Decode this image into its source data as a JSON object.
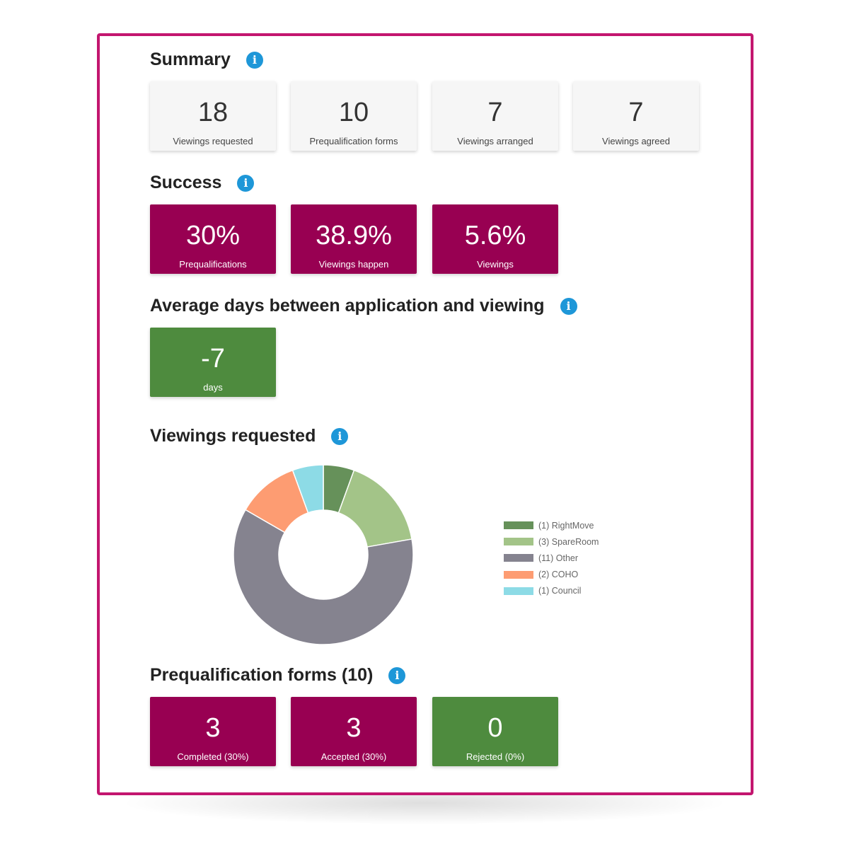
{
  "colors": {
    "frame_border": "#c3166f",
    "brand_dark": "#980052",
    "success_green": "#4e8b3e",
    "info_blue": "#1e97d8"
  },
  "summary": {
    "title": "Summary",
    "icon": "info-icon",
    "cards": [
      {
        "value": "18",
        "label": "Viewings requested"
      },
      {
        "value": "10",
        "label": "Prequalification forms"
      },
      {
        "value": "7",
        "label": "Viewings arranged"
      },
      {
        "value": "7",
        "label": "Viewings agreed"
      }
    ]
  },
  "success": {
    "title": "Success",
    "icon": "info-icon",
    "cards": [
      {
        "value": "30%",
        "label": "Prequalifications",
        "color": "#980052"
      },
      {
        "value": "38.9%",
        "label": "Viewings happen",
        "color": "#980052"
      },
      {
        "value": "5.6%",
        "label": "Viewings",
        "color": "#980052"
      }
    ]
  },
  "average_days": {
    "title": "Average days between application and viewing",
    "icon": "info-icon",
    "card": {
      "value": "-7",
      "label": "days",
      "color": "#4e8b3e"
    }
  },
  "viewings_requested": {
    "title": "Viewings requested",
    "icon": "info-icon"
  },
  "chart_data": {
    "type": "pie",
    "donut": true,
    "legend_position": "right",
    "slices": [
      {
        "label": "(1) RightMove",
        "value": 1,
        "color": "#66915a"
      },
      {
        "label": "(3) SpareRoom",
        "value": 3,
        "color": "#a3c488"
      },
      {
        "label": "(11) Other",
        "value": 11,
        "color": "#85838f"
      },
      {
        "label": "(2) COHO",
        "value": 2,
        "color": "#fd9c72"
      },
      {
        "label": "(1) Council",
        "value": 1,
        "color": "#8ddbe6"
      }
    ]
  },
  "prequalification": {
    "title": "Prequalification forms (10)",
    "icon": "info-icon",
    "cards": [
      {
        "value": "3",
        "label": "Completed (30%)",
        "color": "#980052"
      },
      {
        "value": "3",
        "label": "Accepted (30%)",
        "color": "#980052"
      },
      {
        "value": "0",
        "label": "Rejected (0%)",
        "color": "#4e8b3e"
      }
    ]
  }
}
